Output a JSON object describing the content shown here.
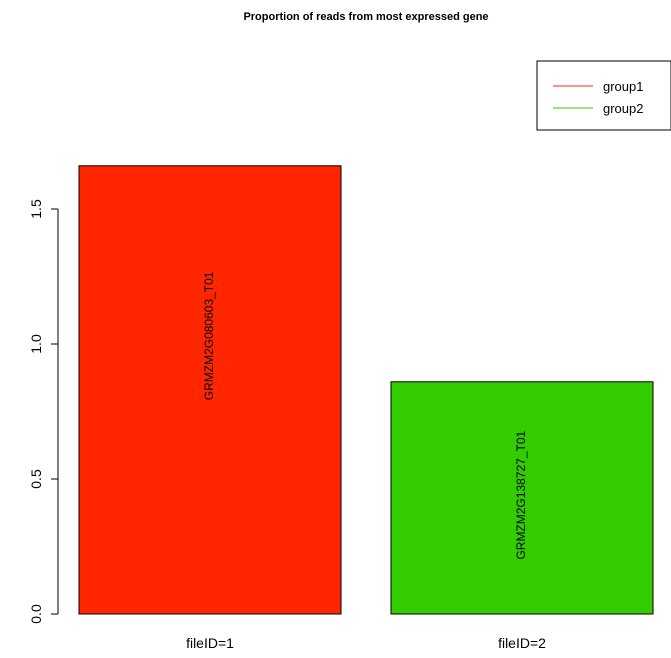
{
  "chart_data": {
    "type": "bar",
    "title": "Proportion of reads from most expressed gene",
    "xlabel": "",
    "ylabel": "",
    "categories": [
      "fileID=1",
      "fileID=2"
    ],
    "values": [
      1.66,
      0.86
    ],
    "bar_labels": [
      "GRMZM2G080603_T01",
      "GRMZM2G138727_T01"
    ],
    "bar_colors": [
      "#ff2600",
      "#33cc00"
    ],
    "ylim": [
      0,
      1.7
    ],
    "yticks": [
      0.0,
      0.5,
      1.0,
      1.5
    ],
    "ytick_labels": [
      "0.0",
      "0.5",
      "1.0",
      "1.5"
    ],
    "grid": false,
    "legend": {
      "position": "top-right",
      "entries": [
        {
          "label": "group1",
          "color": "#ff2600"
        },
        {
          "label": "group2",
          "color": "#33cc00"
        }
      ]
    }
  }
}
